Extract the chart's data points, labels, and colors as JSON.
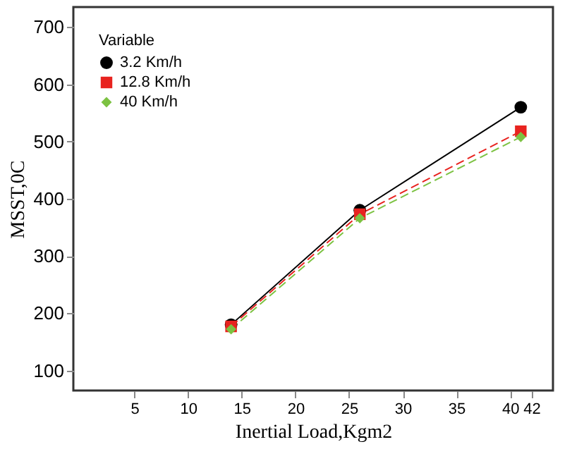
{
  "chart_data": {
    "type": "line",
    "xlabel": "Inertial Load,Kgm2",
    "ylabel": "MSST,0C",
    "legend_title": "Variable",
    "legend": "top left",
    "x": [
      14,
      26,
      41
    ],
    "series": [
      {
        "name": "3.2 Km/h",
        "color": "#000000",
        "values": [
          180,
          380,
          560
        ],
        "marker": "circle",
        "line_style": "solid"
      },
      {
        "name": "12.8 Km/h",
        "color": "#e8231f",
        "values": [
          177,
          373,
          518
        ],
        "marker": "square",
        "line_style": "dashed"
      },
      {
        "name": "40 Km/h",
        "color": "#7cc242",
        "values": [
          172,
          366,
          508
        ],
        "marker": "diamond",
        "line_style": "dashed"
      }
    ],
    "xlim": [
      -0.7,
      44
    ],
    "xticks": [
      5,
      10,
      15,
      20,
      25,
      30,
      35,
      40,
      42
    ],
    "ylim": [
      65,
      735
    ],
    "yticks": [
      100,
      200,
      300,
      400,
      500,
      600,
      700
    ],
    "grid": false
  }
}
